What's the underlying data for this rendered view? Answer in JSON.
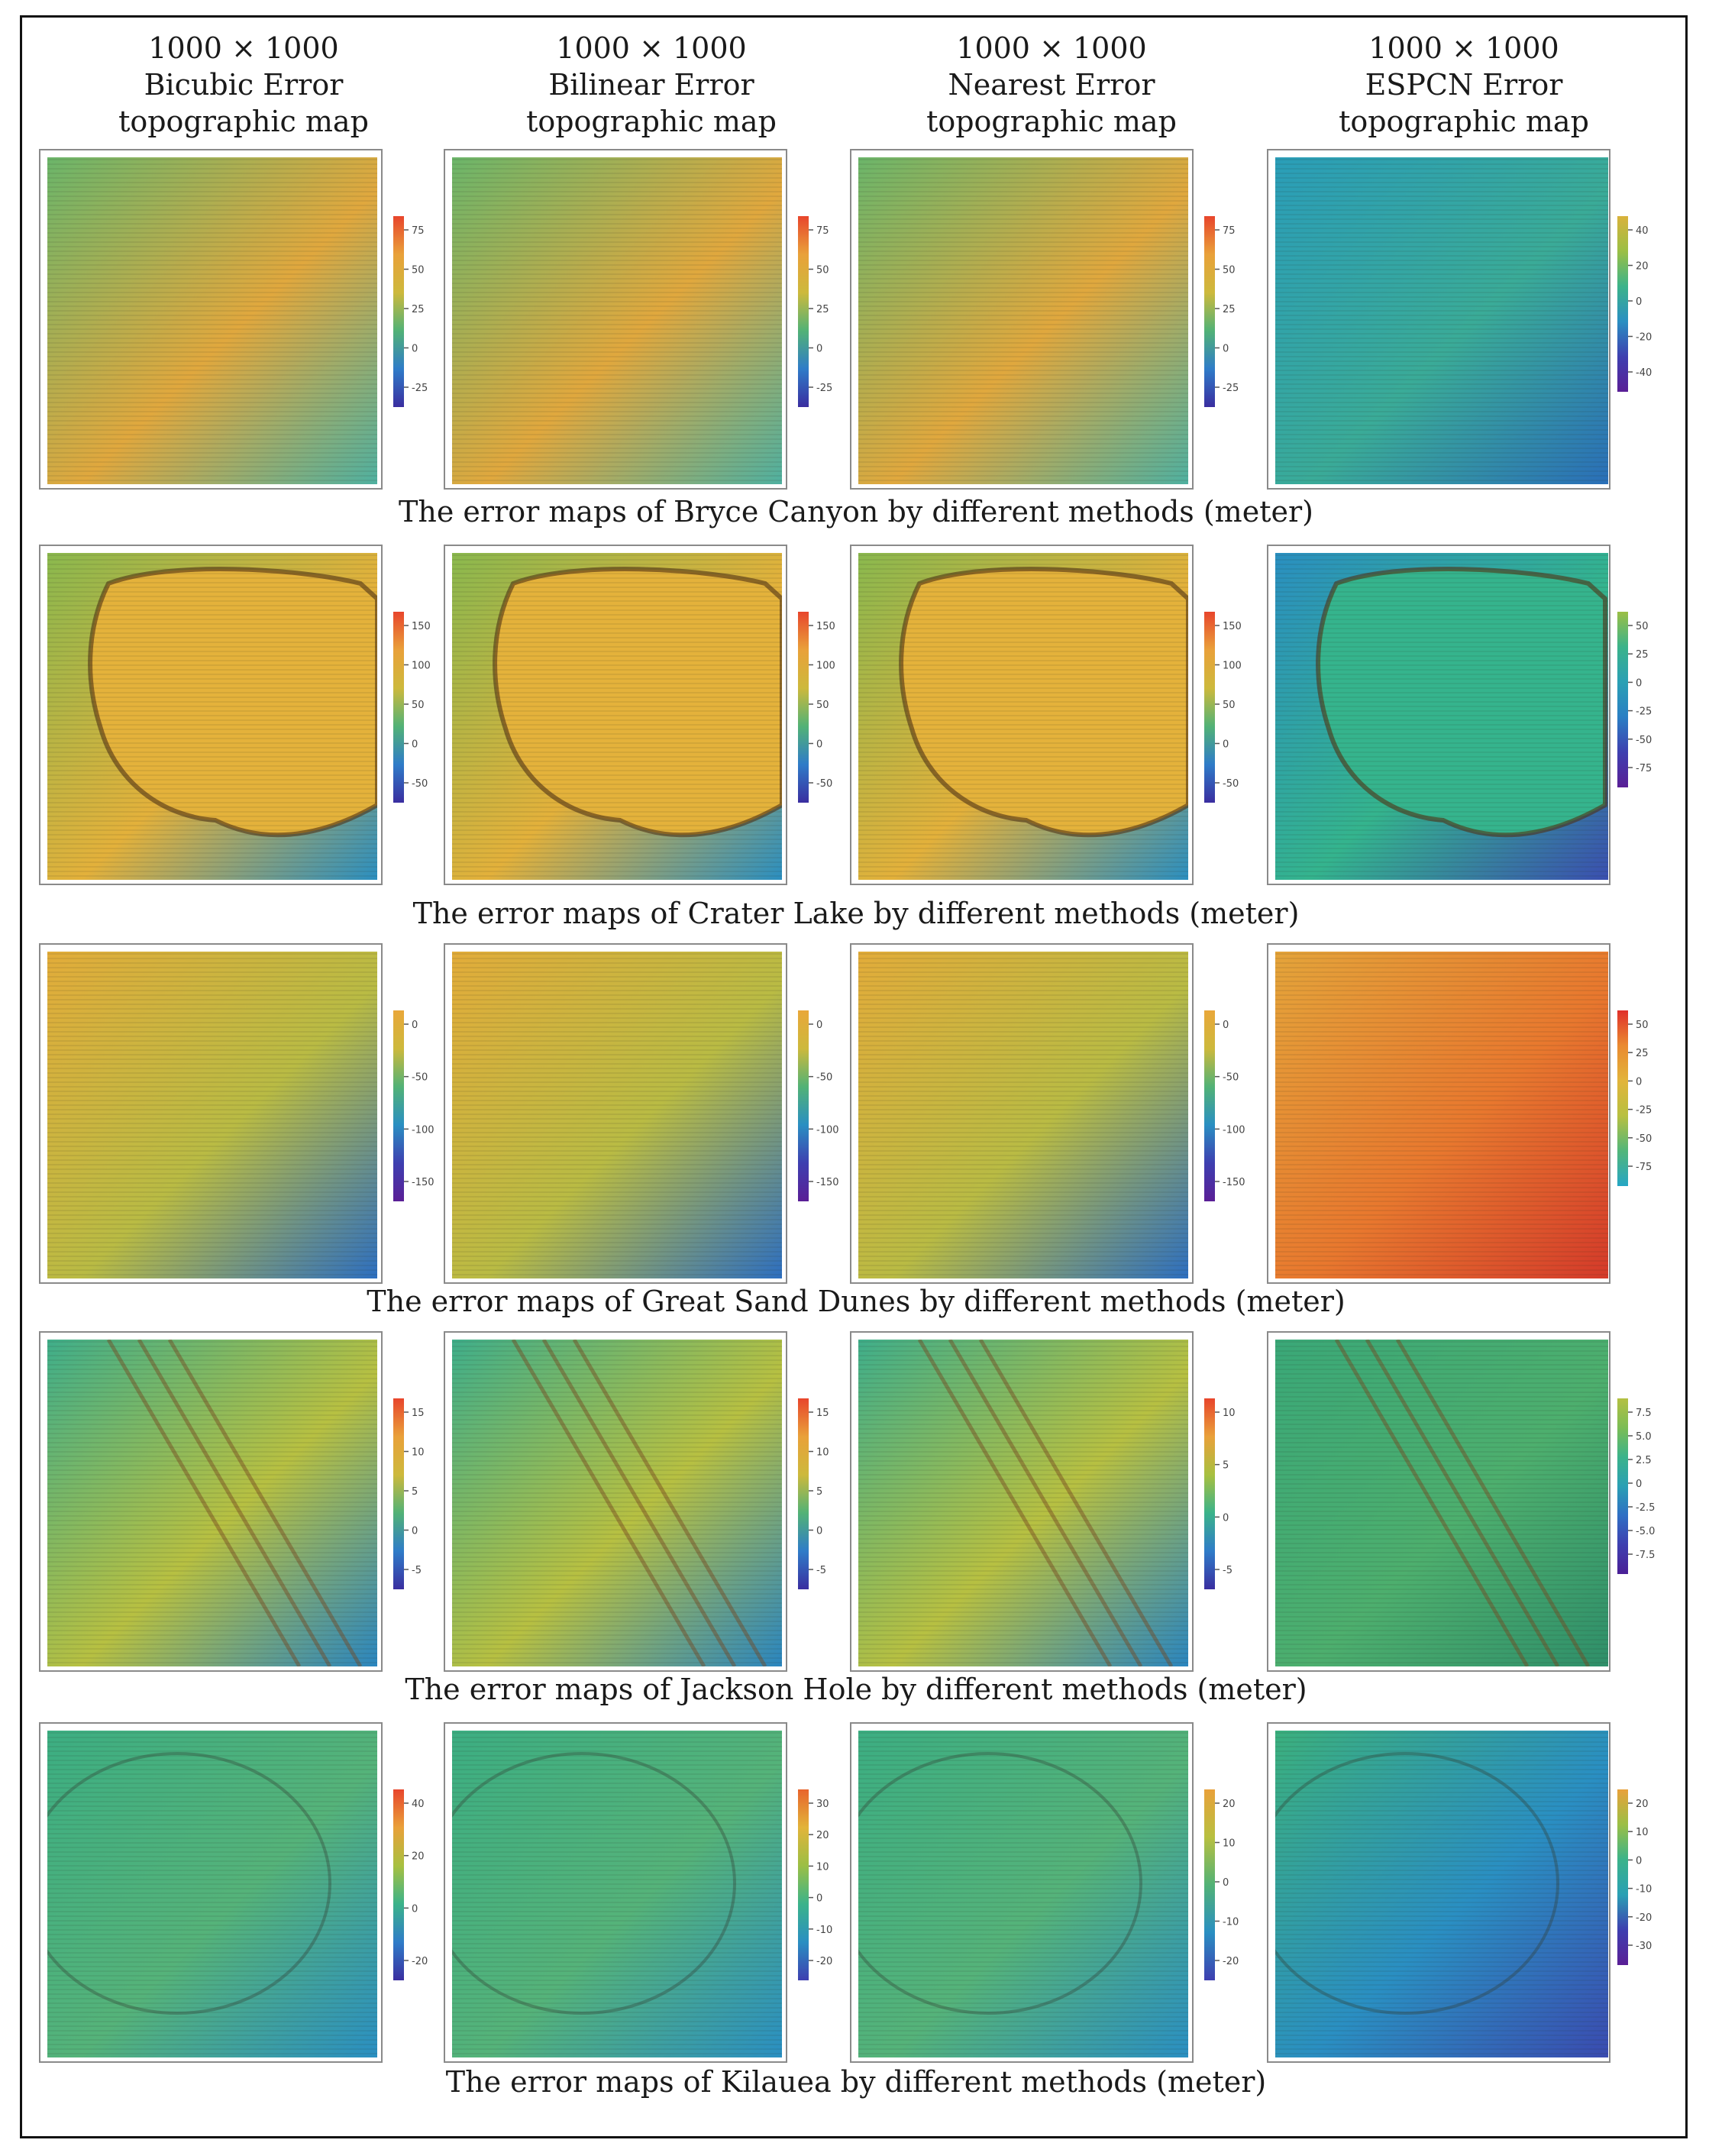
{
  "column_headers": [
    {
      "line1": "1000 × 1000",
      "line2": "Bicubic Error",
      "line3": "topographic map"
    },
    {
      "line1": "1000 × 1000",
      "line2": "Bilinear Error",
      "line3": "topographic map"
    },
    {
      "line1": "1000 × 1000",
      "line2": "Nearest Error",
      "line3": "topographic map"
    },
    {
      "line1": "1000 × 1000",
      "line2": "ESPCN Error",
      "line3": "topographic map"
    }
  ],
  "rows": [
    {
      "caption": "The error maps of Bryce Canyon by different methods (meter)",
      "panels": [
        {
          "ticks": [
            "75",
            "50",
            "25",
            "0",
            "-25"
          ],
          "colors": [
            "#e8452c",
            "#e9a13a",
            "#cdb93c",
            "#52b276",
            "#2f7cc8",
            "#3a2ea0"
          ]
        },
        {
          "ticks": [
            "75",
            "50",
            "25",
            "0",
            "-25"
          ],
          "colors": [
            "#e8452c",
            "#e9a13a",
            "#cdb93c",
            "#52b276",
            "#2f7cc8",
            "#3a2ea0"
          ]
        },
        {
          "ticks": [
            "75",
            "50",
            "25",
            "0",
            "-25"
          ],
          "colors": [
            "#e8452c",
            "#e9a13a",
            "#cdb93c",
            "#52b276",
            "#2f7cc8",
            "#3a2ea0"
          ]
        },
        {
          "ticks": [
            "40",
            "20",
            "0",
            "-20",
            "-40"
          ],
          "colors": [
            "#d9b23b",
            "#9bbf45",
            "#3bb38a",
            "#2a8fc2",
            "#3e3fb0",
            "#5a1f96"
          ]
        }
      ]
    },
    {
      "caption": "The error maps of Crater Lake by different methods (meter)",
      "panels": [
        {
          "ticks": [
            "150",
            "100",
            "50",
            "0",
            "-50"
          ],
          "colors": [
            "#e8452c",
            "#e9a13a",
            "#cdb93c",
            "#52b276",
            "#2f7cc8",
            "#3a2ea0"
          ]
        },
        {
          "ticks": [
            "150",
            "100",
            "50",
            "0",
            "-50"
          ],
          "colors": [
            "#e8452c",
            "#e9a13a",
            "#cdb93c",
            "#52b276",
            "#2f7cc8",
            "#3a2ea0"
          ]
        },
        {
          "ticks": [
            "150",
            "100",
            "50",
            "0",
            "-50"
          ],
          "colors": [
            "#e8452c",
            "#e9a13a",
            "#cdb93c",
            "#52b276",
            "#2f7cc8",
            "#3a2ea0"
          ]
        },
        {
          "ticks": [
            "50",
            "25",
            "0",
            "-25",
            "-50",
            "-75"
          ],
          "colors": [
            "#9bbf45",
            "#3bb38a",
            "#2aa0b4",
            "#2a7fc4",
            "#3e3fb0",
            "#5a1f96"
          ]
        }
      ]
    },
    {
      "caption": "The error maps of Great Sand Dunes by different methods (meter)",
      "panels": [
        {
          "ticks": [
            "0",
            "-50",
            "-100",
            "-150"
          ],
          "colors": [
            "#e9a73a",
            "#cdb93c",
            "#52b276",
            "#2a8fc2",
            "#3e3fb0",
            "#5a1f96"
          ]
        },
        {
          "ticks": [
            "0",
            "-50",
            "-100",
            "-150"
          ],
          "colors": [
            "#e9a73a",
            "#cdb93c",
            "#52b276",
            "#2a8fc2",
            "#3e3fb0",
            "#5a1f96"
          ]
        },
        {
          "ticks": [
            "0",
            "-50",
            "-100",
            "-150"
          ],
          "colors": [
            "#e9a73a",
            "#cdb93c",
            "#52b276",
            "#2a8fc2",
            "#3e3fb0",
            "#5a1f96"
          ]
        },
        {
          "ticks": [
            "50",
            "25",
            "0",
            "-25",
            "-50",
            "-75"
          ],
          "colors": [
            "#e0302a",
            "#ea8a30",
            "#e2b43a",
            "#b8c040",
            "#52b67a",
            "#26a6c4"
          ]
        }
      ]
    },
    {
      "caption": "The error maps of Jackson Hole by different methods (meter)",
      "panels": [
        {
          "ticks": [
            "15",
            "10",
            "5",
            "0",
            "-5"
          ],
          "colors": [
            "#e8452c",
            "#e9a13a",
            "#cdb93c",
            "#52b276",
            "#2f7cc8",
            "#3a2ea0"
          ]
        },
        {
          "ticks": [
            "15",
            "10",
            "5",
            "0",
            "-5"
          ],
          "colors": [
            "#e8452c",
            "#e9a13a",
            "#cdb93c",
            "#52b276",
            "#2f7cc8",
            "#3a2ea0"
          ]
        },
        {
          "ticks": [
            "10",
            "5",
            "0",
            "-5"
          ],
          "colors": [
            "#e8452c",
            "#e9a13a",
            "#a8c040",
            "#3bb38a",
            "#2f7cc8",
            "#3a2ea0"
          ]
        },
        {
          "ticks": [
            "7.5",
            "5.0",
            "2.5",
            "0",
            "-2.5",
            "-5.0",
            "-7.5"
          ],
          "colors": [
            "#b4c042",
            "#7cbd55",
            "#3bb38a",
            "#2aa0b4",
            "#2f6fc4",
            "#3e3fb0",
            "#4a1f96"
          ]
        }
      ]
    },
    {
      "caption": "The error maps of Kilauea by different methods (meter)",
      "panels": [
        {
          "ticks": [
            "40",
            "20",
            "0",
            "-20"
          ],
          "colors": [
            "#e8452c",
            "#e9a13a",
            "#a8c040",
            "#3bb38a",
            "#2f7cc8",
            "#3a2ea0"
          ]
        },
        {
          "ticks": [
            "30",
            "20",
            "10",
            "0",
            "-10",
            "-20"
          ],
          "colors": [
            "#e8642c",
            "#e2b43a",
            "#9bbf45",
            "#3bb38a",
            "#2a8fc2",
            "#3e3fb0"
          ]
        },
        {
          "ticks": [
            "20",
            "10",
            "0",
            "-10",
            "-20"
          ],
          "colors": [
            "#e9a13a",
            "#b8c040",
            "#52b276",
            "#2a8fc2",
            "#3e3fb0"
          ]
        },
        {
          "ticks": [
            "20",
            "10",
            "0",
            "-10",
            "-20",
            "-30"
          ],
          "colors": [
            "#e9a13a",
            "#9bbf45",
            "#3bb38a",
            "#2aa0b4",
            "#3e3fb0",
            "#5a1f96"
          ]
        }
      ]
    }
  ]
}
